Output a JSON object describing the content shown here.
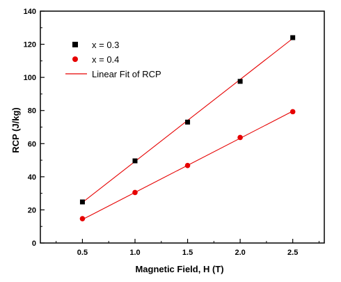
{
  "chart_data": {
    "type": "scatter",
    "title": "",
    "xlabel": "Magnetic Field, H (T)",
    "ylabel": "RCP (J/kg)",
    "xlim": [
      0.1,
      2.8
    ],
    "ylim": [
      0,
      140
    ],
    "x_ticks": [
      0.5,
      1.0,
      1.5,
      2.0,
      2.5
    ],
    "x_tick_labels": [
      "0.5",
      "1.0",
      "1.5",
      "2.0",
      "2.5"
    ],
    "y_ticks": [
      0,
      20,
      40,
      60,
      80,
      100,
      120,
      140
    ],
    "y_tick_labels": [
      "0",
      "20",
      "40",
      "60",
      "80",
      "100",
      "120",
      "140"
    ],
    "grid": false,
    "legend_position": "top-left",
    "series": [
      {
        "name": "x = 0.3",
        "marker": "square",
        "color": "#000000",
        "x": [
          0.5,
          1.0,
          1.5,
          2.0,
          2.5
        ],
        "y": [
          24.8,
          49.6,
          73.0,
          97.6,
          124.0
        ]
      },
      {
        "name": "x = 0.4",
        "marker": "circle",
        "color": "#e60000",
        "x": [
          0.5,
          1.0,
          1.5,
          2.0,
          2.5
        ],
        "y": [
          14.7,
          30.5,
          46.8,
          63.7,
          79.3
        ]
      }
    ],
    "fit": {
      "name": "Linear Fit of RCP",
      "color": "#e60000",
      "lines": [
        {
          "x": [
            0.5,
            2.5
          ],
          "y": [
            24.5,
            123.5
          ]
        },
        {
          "x": [
            0.5,
            2.5
          ],
          "y": [
            14.2,
            79.6
          ]
        }
      ]
    }
  }
}
